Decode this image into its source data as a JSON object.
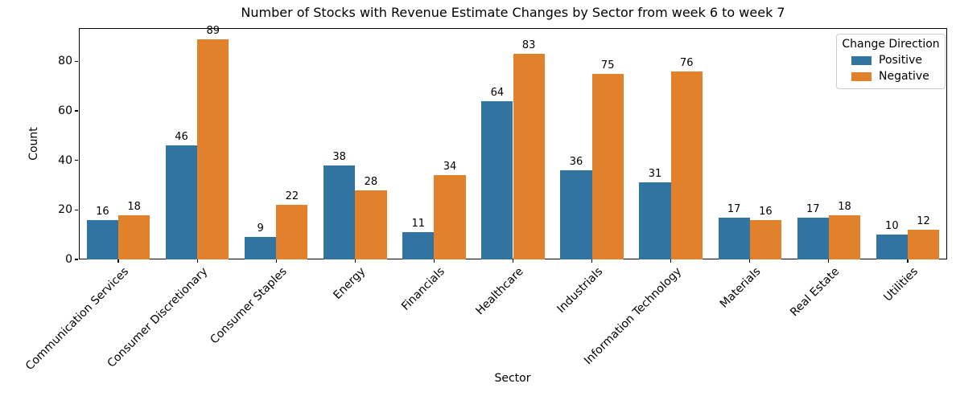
{
  "chart_data": {
    "type": "bar",
    "title": "Number of Stocks with Revenue Estimate Changes by Sector from week 6 to week 7",
    "xlabel": "Sector",
    "ylabel": "Count",
    "categories": [
      "Communication Services",
      "Consumer Discretionary",
      "Consumer Staples",
      "Energy",
      "Financials",
      "Healthcare",
      "Industrials",
      "Information Technology",
      "Materials",
      "Real Estate",
      "Utilities"
    ],
    "series": [
      {
        "name": "Positive",
        "color": "#3274a1",
        "values": [
          16,
          46,
          9,
          38,
          11,
          64,
          36,
          31,
          17,
          17,
          10
        ]
      },
      {
        "name": "Negative",
        "color": "#e1812c",
        "values": [
          18,
          89,
          22,
          28,
          34,
          83,
          75,
          76,
          16,
          18,
          12
        ]
      }
    ],
    "legend": {
      "title": "Change Direction",
      "position": "upper right",
      "entries": [
        "Positive",
        "Negative"
      ]
    },
    "ylim": [
      0,
      93.45
    ],
    "yticks": [
      0,
      20,
      40,
      60,
      80
    ],
    "grid": false,
    "bar_value_labels": true
  }
}
